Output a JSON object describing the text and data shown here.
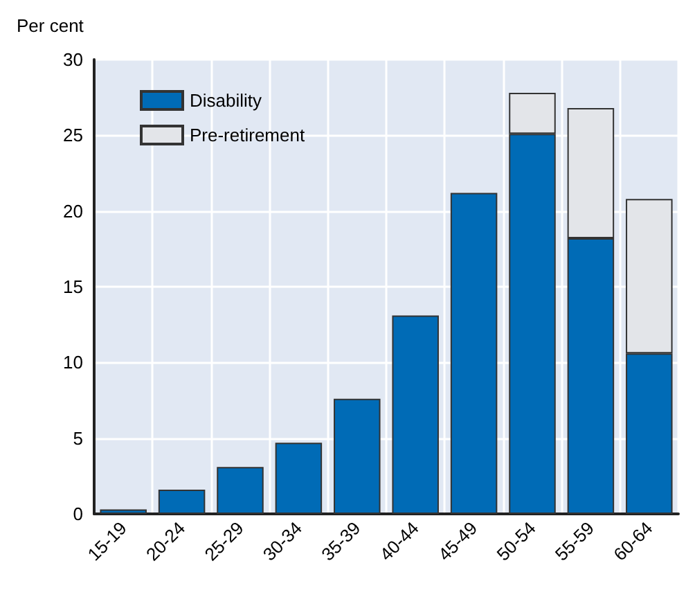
{
  "chart_data": {
    "type": "bar",
    "ylabel": "Per cent",
    "categories": [
      "15-19",
      "20-24",
      "25-29",
      "30-34",
      "35-39",
      "40-44",
      "45-49",
      "50-54",
      "55-59",
      "60-64"
    ],
    "stacked": true,
    "series": [
      {
        "name": "Disability",
        "color": "#006bb6",
        "values": [
          0.3,
          1.6,
          3.1,
          4.7,
          7.6,
          13.1,
          21.2,
          25.1,
          18.2,
          10.6
        ]
      },
      {
        "name": "Pre-retirement",
        "color": "#e3e5e9",
        "values": [
          null,
          null,
          null,
          null,
          null,
          null,
          null,
          2.7,
          8.6,
          10.2
        ]
      }
    ],
    "ylim": [
      0,
      30
    ],
    "yticks": [
      0,
      5,
      10,
      15,
      20,
      25,
      30
    ],
    "grid": true,
    "legend": "top left"
  }
}
